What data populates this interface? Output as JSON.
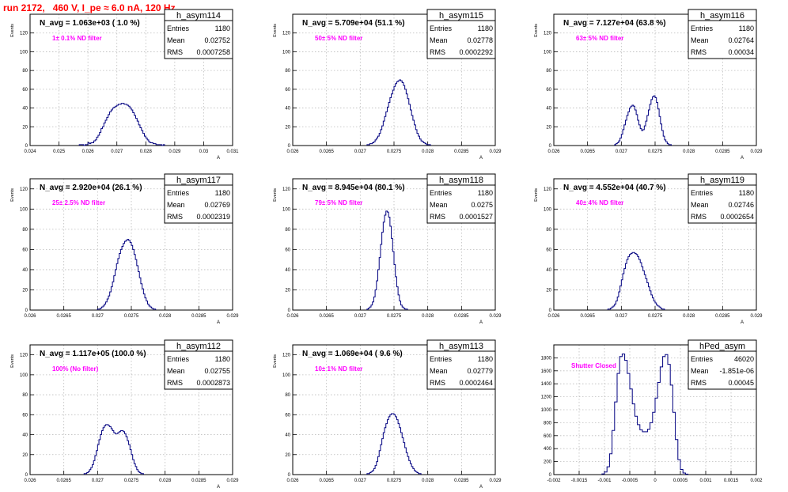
{
  "page_title": "run 2172,   460 V, I_pe ≈ 6.0 nA, 120 Hz",
  "colors": {
    "hist": "#000080",
    "title": "#ff0000",
    "annotation": "#ff00ff",
    "frame": "#000000",
    "grid": "#bbbbbb"
  },
  "chart_data": [
    {
      "type": "histogram",
      "name": "h_asym114",
      "stats": [
        [
          "Entries",
          "1180"
        ],
        [
          "Mean",
          "0.02752"
        ],
        [
          "RMS",
          "0.0007258"
        ]
      ],
      "nbar": "N_avg = 1.063e+03 ( 1.0 %)",
      "filter": "1± 0.1% ND filter",
      "ylabel": "Events",
      "xlabel": "A",
      "xlim": [
        0.024,
        0.031
      ],
      "ylim": [
        0,
        140
      ],
      "xticks": [
        [
          0.024,
          "0.024"
        ],
        [
          0.025,
          "0.025"
        ],
        [
          0.026,
          "0.026"
        ],
        [
          0.027,
          "0.027"
        ],
        [
          0.028,
          "0.028"
        ],
        [
          0.029,
          "0.029"
        ],
        [
          0.03,
          "0.03"
        ],
        [
          0.031,
          "0.031"
        ]
      ],
      "yticks": [
        [
          0,
          "0"
        ],
        [
          20,
          "20"
        ],
        [
          40,
          "40"
        ],
        [
          60,
          "60"
        ],
        [
          80,
          "80"
        ],
        [
          100,
          "100"
        ],
        [
          120,
          "120"
        ]
      ],
      "bins": {
        "start": 0.0257,
        "width": 5e-05,
        "values": [
          1,
          1,
          1,
          0,
          1,
          1,
          3,
          2,
          3,
          3,
          5,
          6,
          9,
          11,
          14,
          18,
          20,
          24,
          27,
          30,
          33,
          36,
          38,
          40,
          41,
          42,
          43,
          44,
          44,
          45,
          45,
          44,
          44,
          43,
          42,
          40,
          38,
          35,
          32,
          29,
          26,
          22,
          19,
          16,
          13,
          10,
          8,
          6,
          4,
          3,
          3,
          2,
          2,
          1,
          1,
          1,
          1,
          0,
          1
        ]
      }
    },
    {
      "type": "histogram",
      "name": "h_asym115",
      "stats": [
        [
          "Entries",
          "1180"
        ],
        [
          "Mean",
          "0.02778"
        ],
        [
          "RMS",
          "0.0002292"
        ]
      ],
      "nbar": "N_avg = 5.709e+04 (51.1 %)",
      "filter": "50± 5% ND filter",
      "ylabel": "Events",
      "xlabel": "A",
      "xlim": [
        0.026,
        0.029
      ],
      "ylim": [
        0,
        140
      ],
      "xticks": [
        [
          0.026,
          "0.026"
        ],
        [
          0.0265,
          "0.0265"
        ],
        [
          0.027,
          "0.027"
        ],
        [
          0.0275,
          "0.0275"
        ],
        [
          0.028,
          "0.028"
        ],
        [
          0.0285,
          "0.0285"
        ],
        [
          0.029,
          "0.029"
        ]
      ],
      "yticks": [
        [
          0,
          "0"
        ],
        [
          20,
          "20"
        ],
        [
          40,
          "40"
        ],
        [
          60,
          "60"
        ],
        [
          80,
          "80"
        ],
        [
          100,
          "100"
        ],
        [
          120,
          "120"
        ]
      ],
      "bins": {
        "start": 0.0271,
        "width": 2e-05,
        "values": [
          1,
          1,
          2,
          2,
          3,
          4,
          6,
          8,
          10,
          13,
          17,
          21,
          26,
          31,
          36,
          41,
          46,
          51,
          55,
          59,
          63,
          66,
          68,
          69,
          70,
          69,
          67,
          64,
          60,
          55,
          50,
          44,
          38,
          32,
          27,
          22,
          17,
          13,
          10,
          7,
          5,
          4,
          3,
          2,
          1,
          1,
          1
        ]
      }
    },
    {
      "type": "histogram",
      "name": "h_asym116",
      "stats": [
        [
          "Entries",
          "1180"
        ],
        [
          "Mean",
          "0.02764"
        ],
        [
          "RMS",
          "0.00034"
        ]
      ],
      "nbar": "N_avg = 7.127e+04 (63.8 %)",
      "filter": "63± 5% ND filter",
      "ylabel": "Events",
      "xlabel": "A",
      "xlim": [
        0.026,
        0.029
      ],
      "ylim": [
        0,
        140
      ],
      "xticks": [
        [
          0.026,
          "0.026"
        ],
        [
          0.0265,
          "0.0265"
        ],
        [
          0.027,
          "0.027"
        ],
        [
          0.0275,
          "0.0275"
        ],
        [
          0.028,
          "0.028"
        ],
        [
          0.0285,
          "0.0285"
        ],
        [
          0.029,
          "0.029"
        ]
      ],
      "yticks": [
        [
          0,
          "0"
        ],
        [
          20,
          "20"
        ],
        [
          40,
          "40"
        ],
        [
          60,
          "60"
        ],
        [
          80,
          "80"
        ],
        [
          100,
          "100"
        ],
        [
          120,
          "120"
        ]
      ],
      "bins": {
        "start": 0.0269,
        "width": 2e-05,
        "values": [
          1,
          2,
          3,
          5,
          8,
          12,
          17,
          22,
          27,
          32,
          36,
          40,
          42,
          43,
          42,
          38,
          33,
          27,
          22,
          18,
          16,
          17,
          21,
          26,
          32,
          38,
          44,
          49,
          52,
          53,
          51,
          46,
          39,
          31,
          23,
          16,
          10,
          6,
          4,
          2,
          1,
          1
        ]
      }
    },
    {
      "type": "histogram",
      "name": "h_asym117",
      "stats": [
        [
          "Entries",
          "1180"
        ],
        [
          "Mean",
          "0.02769"
        ],
        [
          "RMS",
          "0.0002319"
        ]
      ],
      "nbar": "N_avg = 2.920e+04 (26.1 %)",
      "filter": "25± 2.5% ND filter",
      "ylabel": "Events",
      "xlabel": "A",
      "xlim": [
        0.026,
        0.029
      ],
      "ylim": [
        0,
        130
      ],
      "xticks": [
        [
          0.026,
          "0.026"
        ],
        [
          0.0265,
          "0.0265"
        ],
        [
          0.027,
          "0.027"
        ],
        [
          0.0275,
          "0.0275"
        ],
        [
          0.028,
          "0.028"
        ],
        [
          0.0285,
          "0.0285"
        ],
        [
          0.029,
          "0.029"
        ]
      ],
      "yticks": [
        [
          0,
          "0"
        ],
        [
          20,
          "20"
        ],
        [
          40,
          "40"
        ],
        [
          60,
          "60"
        ],
        [
          80,
          "80"
        ],
        [
          100,
          "100"
        ],
        [
          120,
          "120"
        ]
      ],
      "bins": {
        "start": 0.027,
        "width": 2e-05,
        "values": [
          1,
          1,
          2,
          3,
          4,
          6,
          8,
          11,
          14,
          18,
          23,
          28,
          34,
          40,
          46,
          51,
          56,
          60,
          63,
          66,
          68,
          69,
          70,
          69,
          67,
          64,
          60,
          55,
          50,
          44,
          38,
          32,
          26,
          21,
          16,
          12,
          9,
          6,
          4,
          3,
          2,
          1,
          1
        ]
      }
    },
    {
      "type": "histogram",
      "name": "h_asym118",
      "stats": [
        [
          "Entries",
          "1180"
        ],
        [
          "Mean",
          "0.0275"
        ],
        [
          "RMS",
          "0.0001527"
        ]
      ],
      "nbar": "N_avg = 8.945e+04 (80.1 %)",
      "filter": "79± 5% ND filter",
      "ylabel": "Events",
      "xlabel": "A",
      "xlim": [
        0.026,
        0.029
      ],
      "ylim": [
        0,
        130
      ],
      "xticks": [
        [
          0.026,
          "0.026"
        ],
        [
          0.0265,
          "0.0265"
        ],
        [
          0.027,
          "0.027"
        ],
        [
          0.0275,
          "0.0275"
        ],
        [
          0.028,
          "0.028"
        ],
        [
          0.0285,
          "0.0285"
        ],
        [
          0.029,
          "0.029"
        ]
      ],
      "yticks": [
        [
          0,
          "0"
        ],
        [
          20,
          "20"
        ],
        [
          40,
          "40"
        ],
        [
          60,
          "60"
        ],
        [
          80,
          "80"
        ],
        [
          100,
          "100"
        ],
        [
          120,
          "120"
        ]
      ],
      "bins": {
        "start": 0.0271,
        "width": 2e-05,
        "values": [
          1,
          2,
          3,
          5,
          8,
          13,
          20,
          29,
          40,
          52,
          65,
          77,
          87,
          94,
          98,
          97,
          92,
          83,
          71,
          58,
          45,
          33,
          23,
          15,
          9,
          5,
          3,
          2,
          1,
          1
        ]
      }
    },
    {
      "type": "histogram",
      "name": "h_asym119",
      "stats": [
        [
          "Entries",
          "1180"
        ],
        [
          "Mean",
          "0.02746"
        ],
        [
          "RMS",
          "0.0002654"
        ]
      ],
      "nbar": "N_avg = 4.552e+04 (40.7 %)",
      "filter": "40± 4% ND filter",
      "ylabel": "Events",
      "xlabel": "A",
      "xlim": [
        0.026,
        0.029
      ],
      "ylim": [
        0,
        130
      ],
      "xticks": [
        [
          0.026,
          "0.026"
        ],
        [
          0.0265,
          "0.0265"
        ],
        [
          0.027,
          "0.027"
        ],
        [
          0.0275,
          "0.0275"
        ],
        [
          0.028,
          "0.028"
        ],
        [
          0.0285,
          "0.0285"
        ],
        [
          0.029,
          "0.029"
        ]
      ],
      "yticks": [
        [
          0,
          "0"
        ],
        [
          20,
          "20"
        ],
        [
          40,
          "40"
        ],
        [
          60,
          "60"
        ],
        [
          80,
          "80"
        ],
        [
          100,
          "100"
        ],
        [
          120,
          "120"
        ]
      ],
      "bins": {
        "start": 0.0268,
        "width": 2e-05,
        "values": [
          1,
          1,
          2,
          3,
          4,
          6,
          9,
          13,
          18,
          24,
          30,
          36,
          41,
          46,
          50,
          53,
          55,
          56,
          57,
          57,
          56,
          55,
          53,
          50,
          47,
          43,
          39,
          35,
          31,
          27,
          23,
          19,
          15,
          12,
          9,
          7,
          5,
          4,
          3,
          2,
          1,
          1
        ]
      }
    },
    {
      "type": "histogram",
      "name": "h_asym112",
      "stats": [
        [
          "Entries",
          "1180"
        ],
        [
          "Mean",
          "0.02755"
        ],
        [
          "RMS",
          "0.0002873"
        ]
      ],
      "nbar": "N_avg = 1.117e+05 (100.0 %)",
      "filter": "100% (No filter)",
      "ylabel": "Events",
      "xlabel": "A",
      "xlim": [
        0.026,
        0.029
      ],
      "ylim": [
        0,
        130
      ],
      "xticks": [
        [
          0.026,
          "0.026"
        ],
        [
          0.0265,
          "0.0265"
        ],
        [
          0.027,
          "0.027"
        ],
        [
          0.0275,
          "0.0275"
        ],
        [
          0.028,
          "0.028"
        ],
        [
          0.0285,
          "0.0285"
        ],
        [
          0.029,
          "0.029"
        ]
      ],
      "yticks": [
        [
          0,
          "0"
        ],
        [
          20,
          "20"
        ],
        [
          40,
          "40"
        ],
        [
          60,
          "60"
        ],
        [
          80,
          "80"
        ],
        [
          100,
          "100"
        ],
        [
          120,
          "120"
        ]
      ],
      "bins": {
        "start": 0.0268,
        "width": 2e-05,
        "values": [
          1,
          1,
          2,
          3,
          5,
          7,
          10,
          14,
          19,
          24,
          30,
          35,
          40,
          44,
          47,
          49,
          50,
          50,
          49,
          48,
          46,
          44,
          42,
          41,
          41,
          42,
          43,
          44,
          44,
          43,
          41,
          38,
          34,
          30,
          25,
          20,
          15,
          11,
          8,
          5,
          3,
          2,
          1,
          1
        ]
      }
    },
    {
      "type": "histogram",
      "name": "h_asym113",
      "stats": [
        [
          "Entries",
          "1180"
        ],
        [
          "Mean",
          "0.02779"
        ],
        [
          "RMS",
          "0.0002464"
        ]
      ],
      "nbar": "N_avg = 1.069e+04 ( 9.6 %)",
      "filter": "10± 1% ND filter",
      "ylabel": "Events",
      "xlabel": "A",
      "xlim": [
        0.026,
        0.029
      ],
      "ylim": [
        0,
        130
      ],
      "xticks": [
        [
          0.026,
          "0.026"
        ],
        [
          0.0265,
          "0.0265"
        ],
        [
          0.027,
          "0.027"
        ],
        [
          0.0275,
          "0.0275"
        ],
        [
          0.028,
          "0.028"
        ],
        [
          0.0285,
          "0.0285"
        ],
        [
          0.029,
          "0.029"
        ]
      ],
      "yticks": [
        [
          0,
          "0"
        ],
        [
          20,
          "20"
        ],
        [
          40,
          "40"
        ],
        [
          60,
          "60"
        ],
        [
          80,
          "80"
        ],
        [
          100,
          "100"
        ],
        [
          120,
          "120"
        ]
      ],
      "bins": {
        "start": 0.0271,
        "width": 2e-05,
        "values": [
          1,
          1,
          2,
          3,
          4,
          6,
          9,
          13,
          18,
          24,
          30,
          36,
          42,
          47,
          51,
          55,
          58,
          60,
          61,
          61,
          60,
          58,
          55,
          51,
          47,
          42,
          37,
          32,
          27,
          22,
          18,
          14,
          11,
          8,
          6,
          4,
          3,
          2,
          1,
          1
        ]
      }
    },
    {
      "type": "histogram",
      "name": "hPed_asym",
      "stats": [
        [
          "Entries",
          "46020"
        ],
        [
          "Mean",
          "-1.851e-06"
        ],
        [
          "RMS",
          "0.00045"
        ]
      ],
      "nbar": "",
      "filter": "Shutter Closed",
      "ylabel": "",
      "xlabel": "",
      "xlim": [
        -0.002,
        0.002
      ],
      "ylim": [
        0,
        2000
      ],
      "xticks": [
        [
          -0.002,
          "-0.002"
        ],
        [
          -0.0015,
          "-0.0015"
        ],
        [
          -0.001,
          "-0.001"
        ],
        [
          -0.0005,
          "-0.0005"
        ],
        [
          0,
          "0"
        ],
        [
          0.0005,
          "0.0005"
        ],
        [
          0.001,
          "0.001"
        ],
        [
          0.0015,
          "0.0015"
        ],
        [
          0.002,
          "0.002"
        ]
      ],
      "yticks": [
        [
          0,
          "0"
        ],
        [
          200,
          "200"
        ],
        [
          400,
          "400"
        ],
        [
          600,
          "600"
        ],
        [
          800,
          "800"
        ],
        [
          1000,
          "1000"
        ],
        [
          1200,
          "1200"
        ],
        [
          1400,
          "1400"
        ],
        [
          1600,
          "1600"
        ],
        [
          1800,
          "1800"
        ]
      ],
      "bins": {
        "start": -0.00105,
        "width": 5e-05,
        "values": [
          10,
          40,
          120,
          320,
          680,
          1120,
          1560,
          1820,
          1860,
          1760,
          1560,
          1320,
          1090,
          900,
          770,
          690,
          660,
          660,
          700,
          800,
          960,
          1180,
          1420,
          1660,
          1820,
          1850,
          1700,
          1380,
          960,
          540,
          230,
          80,
          25,
          8
        ]
      }
    }
  ]
}
